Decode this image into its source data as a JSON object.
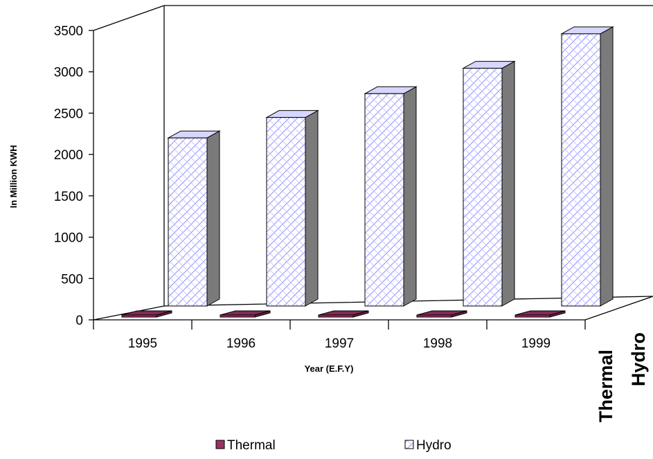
{
  "chart_data": {
    "type": "bar",
    "title": "",
    "xlabel": "Year (E.F.Y)",
    "ylabel": "In Million KWH",
    "ylim": [
      0,
      3500
    ],
    "yticks": [
      "0",
      "500",
      "1000",
      "1500",
      "2000",
      "2500",
      "3000",
      "3500"
    ],
    "categories": [
      "1995",
      "1996",
      "1997",
      "1998",
      "1999"
    ],
    "series": [
      {
        "name": "Thermal",
        "values": [
          5,
          5,
          5,
          5,
          5
        ],
        "color": "#993366"
      },
      {
        "name": "Hydro",
        "values": [
          2050,
          2300,
          2590,
          2900,
          3320
        ],
        "color": "#ffffff",
        "pattern_color": "#8f8fff"
      }
    ],
    "depth_axis_labels": [
      "Thermal",
      "Hydro"
    ],
    "legend": {
      "position": "bottom",
      "entries": [
        "Thermal",
        "Hydro"
      ]
    },
    "grid": false,
    "style": "3d-column"
  }
}
